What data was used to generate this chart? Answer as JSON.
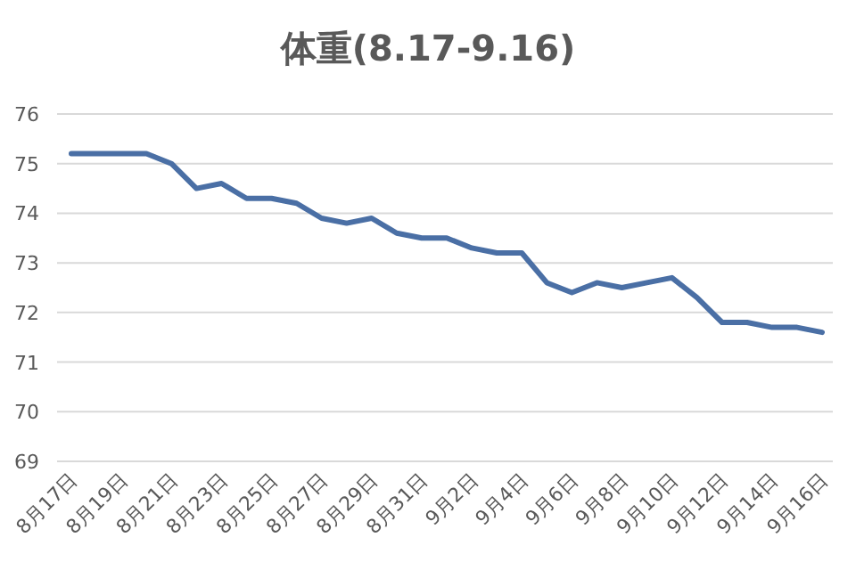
{
  "chart_data": {
    "type": "line",
    "title": "体重(8.17-9.16)",
    "categories": [
      "8月17日",
      null,
      "8月19日",
      null,
      "8月21日",
      null,
      "8月23日",
      null,
      "8月25日",
      null,
      "8月27日",
      null,
      "8月29日",
      null,
      "8月31日",
      null,
      "9月2日",
      null,
      "9月4日",
      null,
      "9月6日",
      null,
      "9月8日",
      null,
      "9月10日",
      null,
      "9月12日",
      null,
      "9月14日",
      null,
      "9月16日"
    ],
    "series": [
      {
        "color": "#4a6fa5",
        "values": [
          75.2,
          75.2,
          75.2,
          75.2,
          75.0,
          74.5,
          74.6,
          74.3,
          74.3,
          74.2,
          73.9,
          73.8,
          73.9,
          73.6,
          73.5,
          73.5,
          73.3,
          73.2,
          73.2,
          72.6,
          72.4,
          72.6,
          72.5,
          72.6,
          72.7,
          72.3,
          71.8,
          71.8,
          71.7,
          71.7,
          71.6
        ]
      }
    ],
    "ylim": [
      69,
      76
    ],
    "yticks": [
      69,
      70,
      71,
      72,
      73,
      74,
      75,
      76
    ],
    "grid": "y",
    "marker": "none",
    "line_style": "solid"
  }
}
